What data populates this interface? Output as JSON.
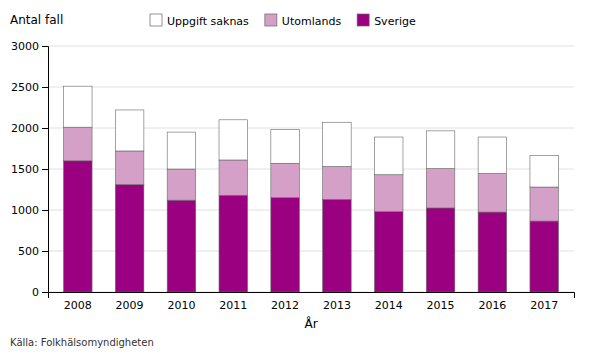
{
  "chart_data": {
    "type": "bar",
    "stacked": true,
    "xlabel": "År",
    "ylabel": "Antal fall",
    "annotations": [
      "Källa: Folkhälsomyndigheten"
    ],
    "categories": [
      "2008",
      "2009",
      "2010",
      "2011",
      "2012",
      "2013",
      "2014",
      "2015",
      "2016",
      "2017"
    ],
    "series": [
      {
        "name": "Sverige",
        "color": "#9b0081",
        "values": [
          1600,
          1310,
          1120,
          1180,
          1150,
          1130,
          980,
          1025,
          975,
          865
        ]
      },
      {
        "name": "Utomlands",
        "color": "#d4a0c8",
        "values": [
          410,
          410,
          380,
          430,
          420,
          400,
          450,
          480,
          470,
          415
        ]
      },
      {
        "name": "Uppgift saknas",
        "color": "#ffffff",
        "values": [
          500,
          500,
          450,
          490,
          410,
          540,
          460,
          460,
          445,
          385
        ]
      }
    ],
    "ylim": [
      0,
      3000
    ],
    "yticks": [
      0,
      500,
      1000,
      1500,
      2000,
      2500,
      3000
    ],
    "grid": true,
    "legend": "top"
  }
}
